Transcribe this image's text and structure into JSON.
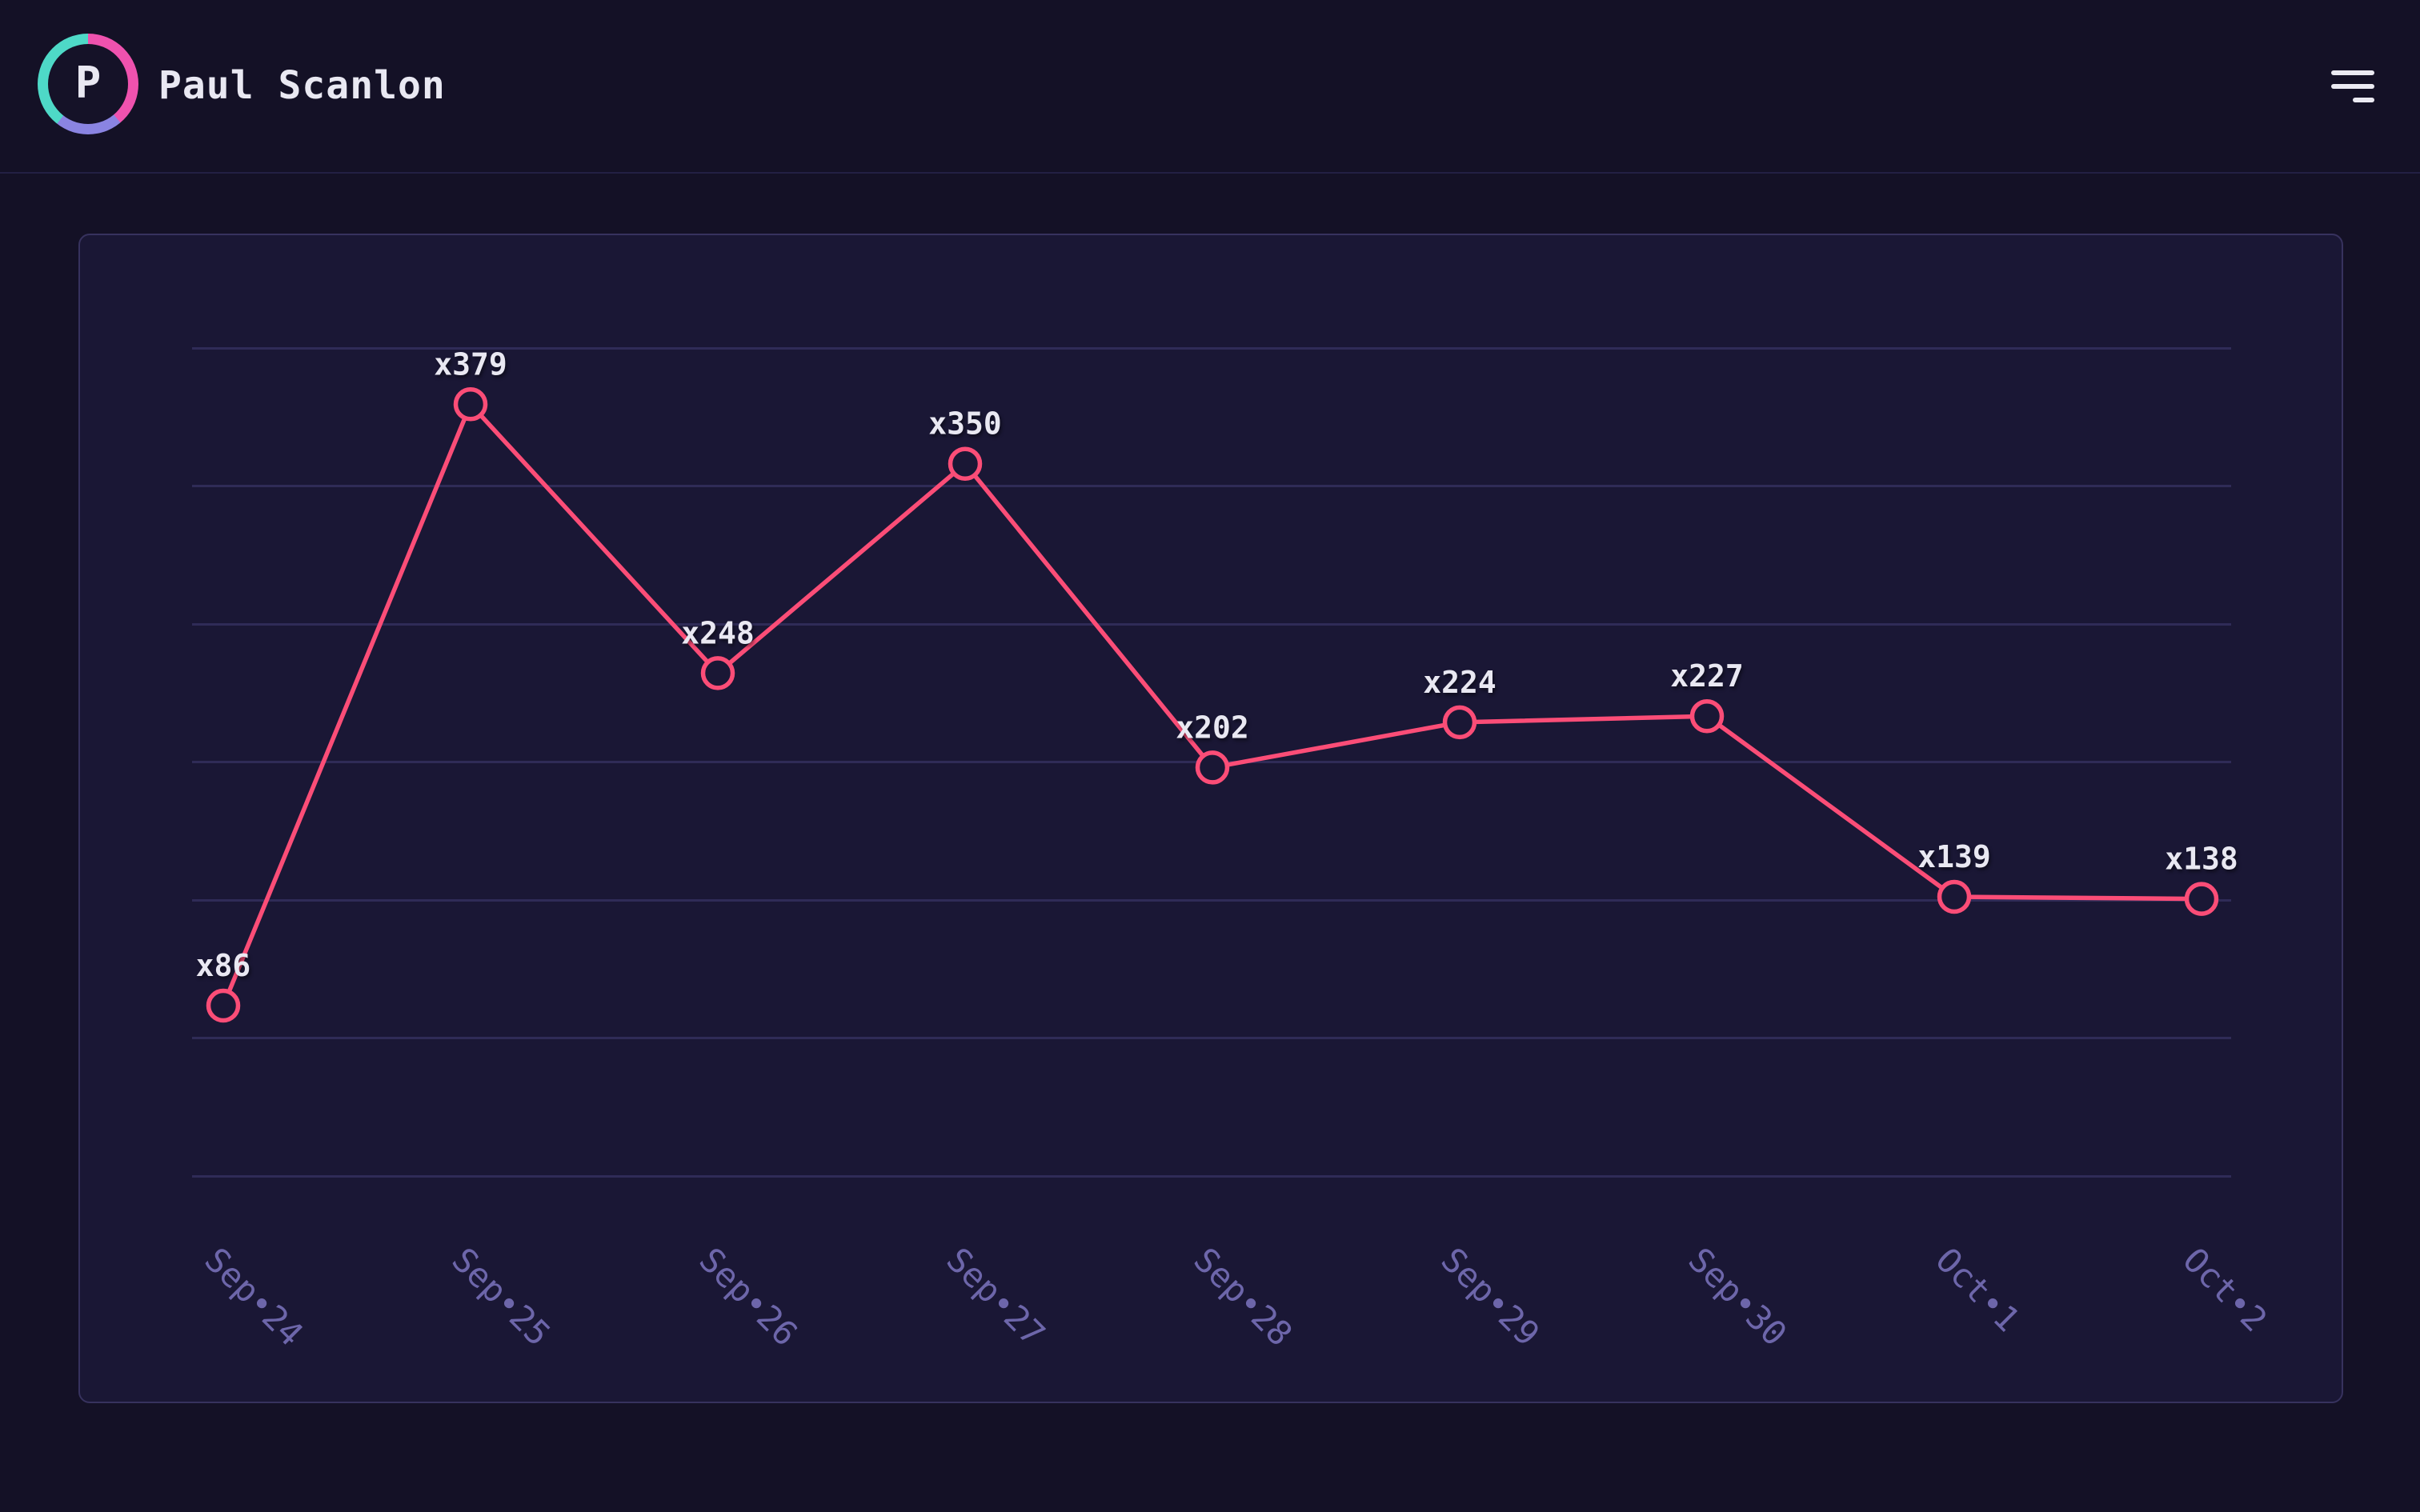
{
  "header": {
    "avatar_initial": "P",
    "name": "Paul Scanlon",
    "avatar_ring_colors": [
      "#ef52ae",
      "#8a84e2",
      "#4ed9c7"
    ]
  },
  "chart_data": {
    "type": "line",
    "categories": [
      "Sep•24",
      "Sep•25",
      "Sep•26",
      "Sep•27",
      "Sep•28",
      "Sep•29",
      "Sep•30",
      "Oct•1",
      "Oct•2"
    ],
    "values": [
      86,
      379,
      248,
      350,
      202,
      224,
      227,
      139,
      138
    ],
    "point_labels": [
      "x86",
      "x379",
      "x248",
      "x350",
      "x202",
      "x224",
      "x227",
      "x139",
      "x138"
    ],
    "title": "",
    "xlabel": "",
    "ylabel": "",
    "legend_shown": false,
    "y_tick_labels_shown": false,
    "horizontal_gridlines": 7,
    "x_tick_rotation_deg": 45,
    "colors": {
      "line": "#fb4d77",
      "marker_fill": "#1a1735",
      "marker_stroke": "#fb4d77",
      "point_label": "#e9e8f2",
      "tick_label": "#6d66aa",
      "gridline": "#2f2b57",
      "card_background": "#1a1735",
      "page_background": "#141126"
    }
  }
}
